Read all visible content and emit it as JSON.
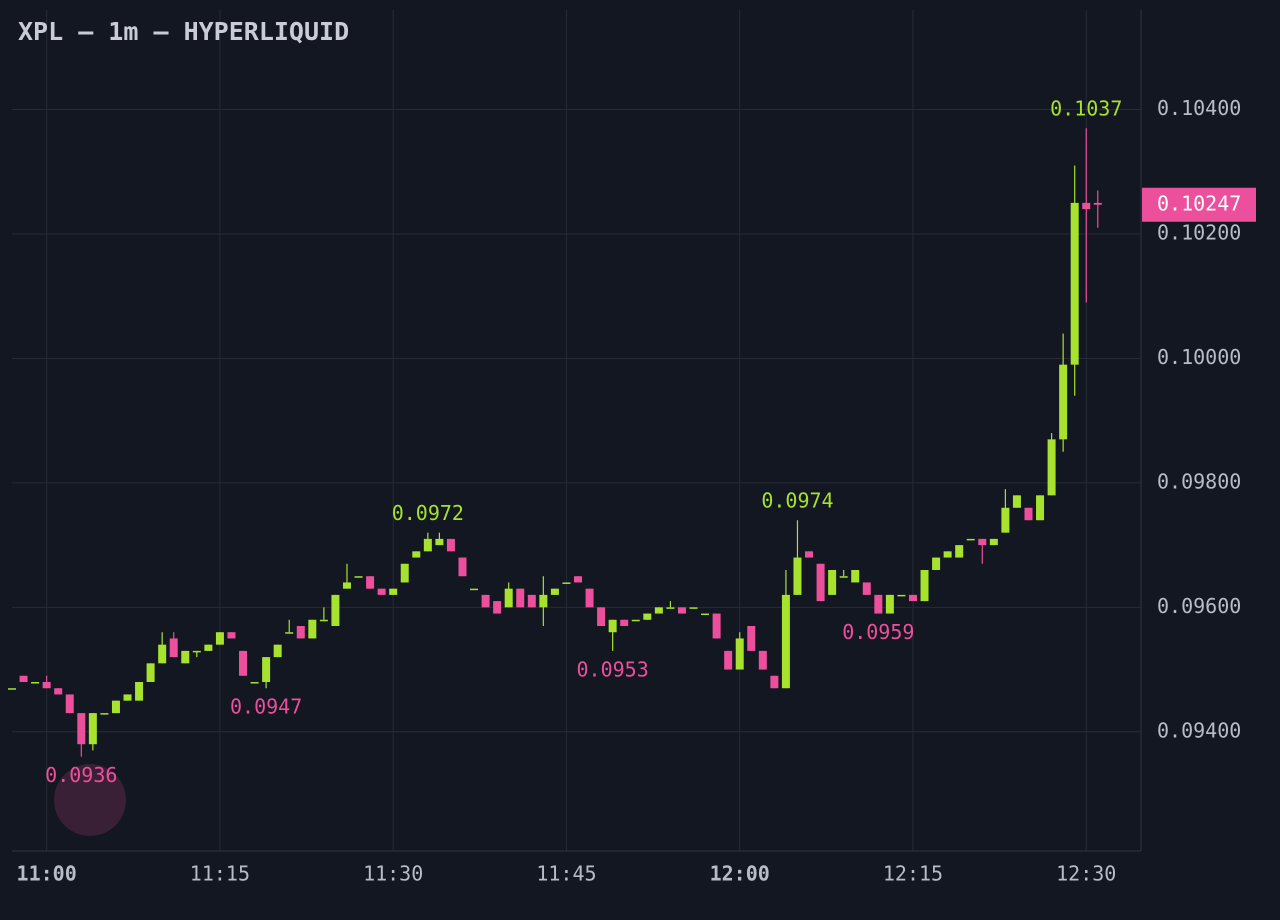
{
  "chart_data": {
    "type": "candlestick",
    "title": "XPL — 1m — HYPERLIQUID",
    "up_color": "#a6e22e",
    "down_color": "#ec4f9c",
    "grid": true,
    "x": [
      "10:57",
      "10:58",
      "10:59",
      "11:00",
      "11:01",
      "11:02",
      "11:03",
      "11:04",
      "11:05",
      "11:06",
      "11:07",
      "11:08",
      "11:09",
      "11:10",
      "11:11",
      "11:12",
      "11:13",
      "11:14",
      "11:15",
      "11:16",
      "11:17",
      "11:18",
      "11:19",
      "11:20",
      "11:21",
      "11:22",
      "11:23",
      "11:24",
      "11:25",
      "11:26",
      "11:27",
      "11:28",
      "11:29",
      "11:30",
      "11:31",
      "11:32",
      "11:33",
      "11:34",
      "11:35",
      "11:36",
      "11:37",
      "11:38",
      "11:39",
      "11:40",
      "11:41",
      "11:42",
      "11:43",
      "11:44",
      "11:45",
      "11:46",
      "11:47",
      "11:48",
      "11:49",
      "11:50",
      "11:51",
      "11:52",
      "11:53",
      "11:54",
      "11:55",
      "11:56",
      "11:57",
      "11:58",
      "11:59",
      "12:00",
      "12:01",
      "12:02",
      "12:03",
      "12:04",
      "12:05",
      "12:06",
      "12:07",
      "12:08",
      "12:09",
      "12:10",
      "12:11",
      "12:12",
      "12:13",
      "12:14",
      "12:15",
      "12:16",
      "12:17",
      "12:18",
      "12:19",
      "12:20",
      "12:21",
      "12:22",
      "12:23",
      "12:24",
      "12:25",
      "12:26",
      "12:27",
      "12:28",
      "12:29",
      "12:30",
      "12:31"
    ],
    "open": [
      0.0947,
      0.0949,
      0.0948,
      0.0948,
      0.0947,
      0.0946,
      0.0943,
      0.0938,
      0.0943,
      0.0943,
      0.0945,
      0.0945,
      0.0948,
      0.0951,
      0.0955,
      0.0951,
      0.0953,
      0.0953,
      0.0954,
      0.0956,
      0.0953,
      0.0948,
      0.0948,
      0.0952,
      0.0956,
      0.0957,
      0.0955,
      0.0958,
      0.0957,
      0.0963,
      0.0965,
      0.0965,
      0.0963,
      0.0962,
      0.0964,
      0.0968,
      0.0969,
      0.097,
      0.0971,
      0.0968,
      0.0963,
      0.0962,
      0.0961,
      0.096,
      0.0963,
      0.0962,
      0.096,
      0.0962,
      0.0964,
      0.0965,
      0.0963,
      0.096,
      0.0956,
      0.0958,
      0.0958,
      0.0958,
      0.0959,
      0.096,
      0.096,
      0.096,
      0.0959,
      0.0959,
      0.0953,
      0.095,
      0.0957,
      0.0953,
      0.0949,
      0.0947,
      0.0962,
      0.0969,
      0.0967,
      0.0962,
      0.0965,
      0.0964,
      0.0964,
      0.0962,
      0.0959,
      0.0962,
      0.0962,
      0.0961,
      0.0966,
      0.0968,
      0.0968,
      0.0971,
      0.0971,
      0.097,
      0.0972,
      0.0976,
      0.0976,
      0.0974,
      0.0978,
      0.0987,
      0.0999,
      0.1025,
      0.1025
    ],
    "high": [
      0.0947,
      0.0949,
      0.0948,
      0.0949,
      0.0947,
      0.0946,
      0.0943,
      0.0943,
      0.0943,
      0.0945,
      0.0946,
      0.0948,
      0.0951,
      0.0956,
      0.0956,
      0.0953,
      0.0953,
      0.0954,
      0.0956,
      0.0956,
      0.0953,
      0.0948,
      0.0952,
      0.0954,
      0.0958,
      0.0957,
      0.0958,
      0.096,
      0.0962,
      0.0967,
      0.0965,
      0.0965,
      0.0963,
      0.0963,
      0.0967,
      0.0969,
      0.0972,
      0.0972,
      0.0971,
      0.0968,
      0.0963,
      0.0962,
      0.0961,
      0.0964,
      0.0963,
      0.0962,
      0.0965,
      0.0963,
      0.0964,
      0.0965,
      0.0963,
      0.096,
      0.0958,
      0.0958,
      0.0958,
      0.0959,
      0.096,
      0.0961,
      0.096,
      0.096,
      0.0959,
      0.0959,
      0.0953,
      0.0956,
      0.0957,
      0.0953,
      0.0949,
      0.0966,
      0.0974,
      0.0969,
      0.0967,
      0.0966,
      0.0966,
      0.0966,
      0.0964,
      0.0962,
      0.0962,
      0.0962,
      0.0962,
      0.0966,
      0.0968,
      0.0969,
      0.097,
      0.0971,
      0.0971,
      0.0971,
      0.0979,
      0.0978,
      0.0976,
      0.0978,
      0.0988,
      0.1004,
      0.1031,
      0.1037,
      0.1027
    ],
    "low": [
      0.0947,
      0.0948,
      0.0948,
      0.0947,
      0.0946,
      0.0943,
      0.0936,
      0.0937,
      0.0943,
      0.0943,
      0.0945,
      0.0945,
      0.0948,
      0.0951,
      0.0952,
      0.0951,
      0.0952,
      0.0953,
      0.0954,
      0.0955,
      0.0949,
      0.0948,
      0.0947,
      0.0952,
      0.0956,
      0.0955,
      0.0955,
      0.0958,
      0.0957,
      0.0963,
      0.0965,
      0.0963,
      0.0962,
      0.0962,
      0.0964,
      0.0968,
      0.0969,
      0.097,
      0.0969,
      0.0965,
      0.0963,
      0.096,
      0.0959,
      0.096,
      0.096,
      0.096,
      0.0957,
      0.0962,
      0.0964,
      0.0964,
      0.096,
      0.0957,
      0.0953,
      0.0957,
      0.0958,
      0.0958,
      0.0959,
      0.096,
      0.0959,
      0.096,
      0.0959,
      0.0955,
      0.095,
      0.095,
      0.0953,
      0.095,
      0.0947,
      0.0947,
      0.0962,
      0.0968,
      0.0961,
      0.0962,
      0.0965,
      0.0964,
      0.0962,
      0.0959,
      0.0959,
      0.0962,
      0.0961,
      0.0961,
      0.0966,
      0.0968,
      0.0968,
      0.0971,
      0.0967,
      0.097,
      0.0972,
      0.0976,
      0.0974,
      0.0974,
      0.0978,
      0.0985,
      0.0994,
      0.1009,
      0.1021
    ],
    "close": [
      0.0947,
      0.0948,
      0.0948,
      0.0947,
      0.0946,
      0.0943,
      0.0938,
      0.0943,
      0.0943,
      0.0945,
      0.0946,
      0.0948,
      0.0951,
      0.0954,
      0.0952,
      0.0953,
      0.0953,
      0.0954,
      0.0956,
      0.0955,
      0.0949,
      0.0948,
      0.0952,
      0.0954,
      0.0956,
      0.0955,
      0.0958,
      0.0958,
      0.0962,
      0.0964,
      0.0965,
      0.0963,
      0.0962,
      0.0963,
      0.0967,
      0.0969,
      0.0971,
      0.0971,
      0.0969,
      0.0965,
      0.0963,
      0.096,
      0.0959,
      0.0963,
      0.096,
      0.096,
      0.0962,
      0.0963,
      0.0964,
      0.0964,
      0.096,
      0.0957,
      0.0958,
      0.0957,
      0.0958,
      0.0959,
      0.096,
      0.096,
      0.0959,
      0.096,
      0.0959,
      0.0955,
      0.095,
      0.0955,
      0.0953,
      0.095,
      0.0947,
      0.0962,
      0.0968,
      0.0968,
      0.0961,
      0.0966,
      0.0965,
      0.0966,
      0.0962,
      0.0959,
      0.0962,
      0.0962,
      0.0961,
      0.0966,
      0.0968,
      0.0969,
      0.097,
      0.0971,
      0.097,
      0.0971,
      0.0976,
      0.0978,
      0.0974,
      0.0978,
      0.0987,
      0.0999,
      0.1025,
      0.1024,
      0.10247
    ],
    "last_price": 0.10247,
    "annotations": [
      {
        "x": "11:03",
        "value": 0.0936,
        "color": "#ec4f9c"
      },
      {
        "x": "11:19",
        "value": 0.0947,
        "color": "#ec4f9c"
      },
      {
        "x": "11:33",
        "value": 0.0972,
        "color": "#a6e22e"
      },
      {
        "x": "11:49",
        "value": 0.0953,
        "color": "#ec4f9c"
      },
      {
        "x": "12:05",
        "value": 0.0974,
        "color": "#a6e22e"
      },
      {
        "x": "12:12",
        "value": 0.0959,
        "color": "#ec4f9c"
      },
      {
        "x": "12:30",
        "value": 0.1037,
        "color": "#a6e22e"
      }
    ],
    "xlim": [
      "10:57",
      "12:35"
    ],
    "xticks": [
      "11:00",
      "11:15",
      "11:30",
      "11:45",
      "12:00",
      "12:15",
      "12:30"
    ],
    "ylim": [
      0.0921,
      0.1056
    ],
    "yticks": [
      {
        "value": 0.094,
        "label": "0.09400"
      },
      {
        "value": 0.096,
        "label": "0.09600"
      },
      {
        "value": 0.098,
        "label": "0.09800"
      },
      {
        "value": 0.1,
        "label": "0.10000"
      },
      {
        "value": 0.102,
        "label": "0.10200"
      },
      {
        "value": 0.104,
        "label": "0.10400"
      }
    ]
  }
}
